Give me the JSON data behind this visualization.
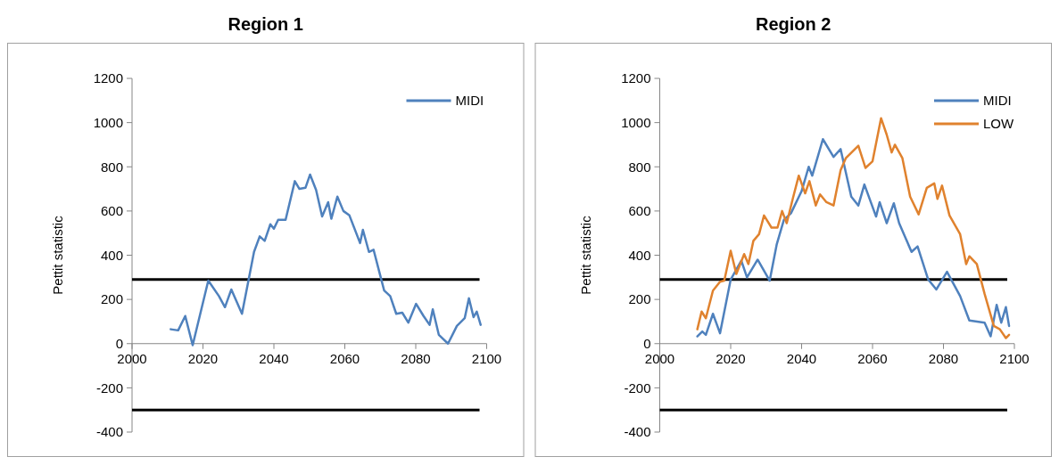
{
  "chart_data": [
    {
      "type": "line",
      "title": "Region 1",
      "ylabel": "Pettit statistic",
      "xlim": [
        2000,
        2100
      ],
      "xticks": [
        2000,
        2020,
        2040,
        2060,
        2080,
        2100
      ],
      "ylim": [
        -400,
        1200
      ],
      "yticks": [
        -400,
        -200,
        0,
        200,
        400,
        600,
        800,
        1000,
        1200
      ],
      "grid": false,
      "legend": "top right",
      "line_style": "solid",
      "ref_lines": [
        {
          "axis": "y",
          "value": 290,
          "color": "#000000"
        },
        {
          "axis": "y",
          "value": -300,
          "color": "#000000"
        }
      ],
      "series": [
        {
          "name": "MIDI",
          "color": "#4f81bd",
          "x": [
            2010.9,
            2013,
            2015,
            2017.1,
            2021.5,
            2024.5,
            2026.2,
            2028,
            2031,
            2034.4,
            2036,
            2037.4,
            2039,
            2040,
            2041.2,
            2043.3,
            2045.9,
            2047.2,
            2048.9,
            2050.2,
            2051.9,
            2053.6,
            2055.3,
            2056.2,
            2057.9,
            2059.6,
            2061.3,
            2064.3,
            2065.1,
            2066.8,
            2068.1,
            2069.8,
            2071.1,
            2072.8,
            2074.5,
            2076.2,
            2077.9,
            2080.1,
            2082.2,
            2083.9,
            2084.8,
            2086.5,
            2089.1,
            2091.6,
            2093.8,
            2095,
            2096.3,
            2097.2,
            2098.3
          ],
          "values": [
            65,
            60,
            125,
            -7,
            285,
            215,
            165,
            245,
            135,
            415,
            485,
            465,
            540,
            520,
            560,
            560,
            735,
            700,
            705,
            765,
            695,
            575,
            640,
            565,
            665,
            600,
            580,
            455,
            515,
            415,
            425,
            320,
            240,
            215,
            135,
            140,
            95,
            180,
            125,
            85,
            155,
            40,
            0,
            80,
            115,
            205,
            120,
            145,
            85
          ]
        }
      ]
    },
    {
      "type": "line",
      "title": "Region 2",
      "ylabel": "Pettit statistic",
      "xlim": [
        2000,
        2100
      ],
      "xticks": [
        2000,
        2020,
        2040,
        2060,
        2080,
        2100
      ],
      "ylim": [
        -400,
        1200
      ],
      "yticks": [
        -400,
        -200,
        0,
        200,
        400,
        600,
        800,
        1000,
        1200
      ],
      "grid": false,
      "legend": "top right",
      "line_style": "solid",
      "ref_lines": [
        {
          "axis": "y",
          "value": 290,
          "color": "#000000"
        },
        {
          "axis": "y",
          "value": -300,
          "color": "#000000"
        }
      ],
      "series": [
        {
          "name": "MIDI",
          "color": "#4f81bd",
          "x": [
            2010.6,
            2012,
            2013,
            2015,
            2017,
            2020,
            2023,
            2024.6,
            2027.6,
            2031,
            2033,
            2035,
            2037,
            2040,
            2042,
            2043,
            2046,
            2049,
            2051,
            2054,
            2056,
            2057.7,
            2061,
            2062,
            2064,
            2066,
            2067.5,
            2071,
            2072.7,
            2075.7,
            2078,
            2081,
            2084.7,
            2087.3,
            2091.6,
            2093.3,
            2095,
            2096.3,
            2097.6,
            2098.5
          ],
          "values": [
            33,
            55,
            40,
            135,
            47,
            290,
            375,
            300,
            380,
            285,
            450,
            560,
            590,
            690,
            800,
            760,
            925,
            845,
            880,
            665,
            625,
            720,
            575,
            640,
            545,
            635,
            545,
            415,
            440,
            290,
            245,
            325,
            215,
            105,
            95,
            33,
            175,
            95,
            165,
            80
          ]
        },
        {
          "name": "LOW",
          "color": "#e0822e",
          "x": [
            2010.6,
            2011.8,
            2013,
            2015,
            2017,
            2018.2,
            2020,
            2021.6,
            2023.8,
            2025,
            2026.4,
            2028,
            2029.4,
            2031.5,
            2033.2,
            2034.5,
            2035.8,
            2037.5,
            2039.2,
            2041,
            2042.2,
            2044,
            2045.2,
            2047,
            2049,
            2051,
            2052.5,
            2056,
            2058,
            2060,
            2062.4,
            2064,
            2065.4,
            2066.3,
            2068.4,
            2070.6,
            2073,
            2075.3,
            2077.4,
            2078.3,
            2079.6,
            2081.7,
            2084.7,
            2086.4,
            2087.3,
            2089.4,
            2091.6,
            2094.2,
            2095.9,
            2097.6,
            2098.5
          ],
          "values": [
            65,
            145,
            115,
            240,
            280,
            285,
            420,
            315,
            405,
            360,
            465,
            495,
            580,
            525,
            525,
            600,
            545,
            655,
            760,
            680,
            735,
            625,
            675,
            640,
            625,
            785,
            840,
            895,
            795,
            825,
            1020,
            945,
            865,
            900,
            840,
            665,
            585,
            705,
            725,
            655,
            715,
            580,
            495,
            360,
            395,
            360,
            225,
            80,
            65,
            25,
            40
          ]
        }
      ]
    }
  ]
}
